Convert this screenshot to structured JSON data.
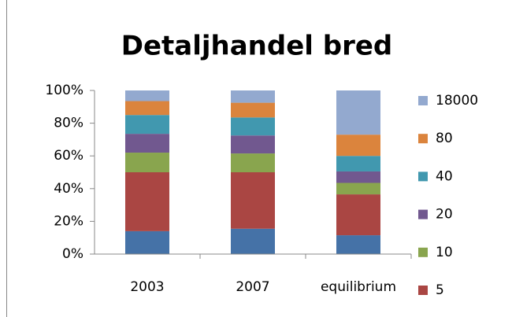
{
  "chart_data": {
    "type": "stacked_bar_percent",
    "title": "Detaljhandel bred",
    "categories": [
      "2003",
      "2007",
      "equilibrium"
    ],
    "series": [
      {
        "name": null,
        "color": "#4572a7",
        "values": [
          14,
          15.5,
          11.5
        ]
      },
      {
        "name": "5",
        "color": "#aa4643",
        "values": [
          36,
          34.5,
          25
        ]
      },
      {
        "name": "10",
        "color": "#89a54e",
        "values": [
          12,
          11.5,
          7
        ]
      },
      {
        "name": "20",
        "color": "#71588f",
        "values": [
          11.5,
          11,
          7
        ]
      },
      {
        "name": "40",
        "color": "#4198af",
        "values": [
          11.5,
          11,
          9.5
        ]
      },
      {
        "name": "80",
        "color": "#db843d",
        "values": [
          8.5,
          9,
          13
        ]
      },
      {
        "name": "18000",
        "color": "#93a9cf",
        "values": [
          6.5,
          7.5,
          27
        ]
      }
    ],
    "ylim": [
      0,
      100
    ],
    "yticks": [
      {
        "value": 0,
        "label": "0%"
      },
      {
        "value": 20,
        "label": "20%"
      },
      {
        "value": 40,
        "label": "40%"
      },
      {
        "value": 60,
        "label": "60%"
      },
      {
        "value": 80,
        "label": "80%"
      },
      {
        "value": 100,
        "label": "100%"
      }
    ],
    "legend": "right"
  }
}
